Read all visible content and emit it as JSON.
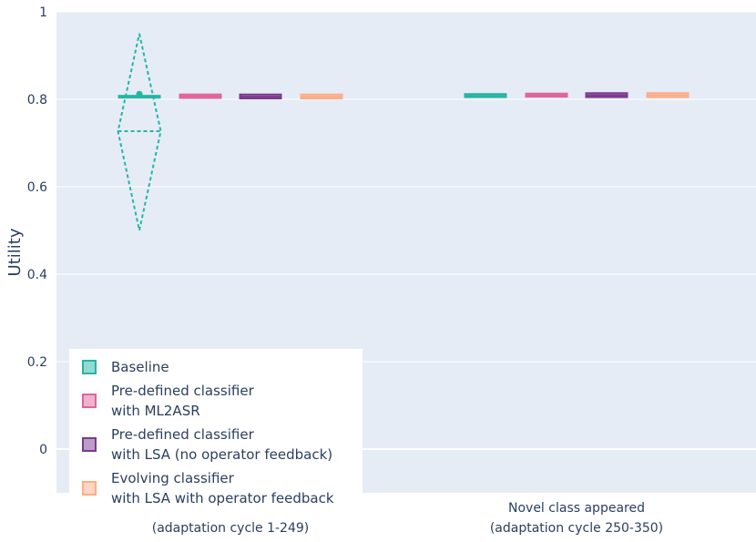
{
  "chart_data": {
    "type": "box",
    "ylabel": "Utility",
    "ylim": [
      -0.1,
      1.0
    ],
    "yticks": [
      0,
      0.2,
      0.4,
      0.6,
      0.8,
      1
    ],
    "ytick_labels": [
      "0",
      "0.2",
      "0.4",
      "0.6",
      "0.8",
      "1"
    ],
    "categories": [
      [
        "(adaptation cycle 1-249)"
      ],
      [
        "Novel class appeared",
        "(adaptation cycle 250-350)"
      ]
    ],
    "grid": true,
    "legend_position": "bottom-left",
    "series": [
      {
        "name_lines": [
          "Baseline"
        ],
        "color": "#26b5a5",
        "boxes": [
          {
            "q1": 0.804,
            "median": 0.806,
            "q3": 0.808,
            "mean": 0.812,
            "mean_line": 0.806,
            "diamond_top": 0.95,
            "diamond_bottom": 0.5,
            "diamond_mid": 0.727
          },
          {
            "q1": 0.805,
            "median": 0.808,
            "q3": 0.812
          }
        ]
      },
      {
        "name_lines": [
          "Pre-defined classifier",
          "with ML2ASR"
        ],
        "color": "#e0649c",
        "boxes": [
          {
            "q1": 0.803,
            "median": 0.807,
            "q3": 0.811
          },
          {
            "q1": 0.806,
            "median": 0.809,
            "q3": 0.813
          }
        ]
      },
      {
        "name_lines": [
          "Pre-defined classifier",
          "with LSA (no operator feedback)"
        ],
        "color": "#7b3a8e",
        "boxes": [
          {
            "q1": 0.802,
            "median": 0.806,
            "q3": 0.811
          },
          {
            "q1": 0.805,
            "median": 0.809,
            "q3": 0.814
          }
        ]
      },
      {
        "name_lines": [
          "Evolving classifier",
          "with LSA with operator feedback"
        ],
        "color": "#fcad88",
        "boxes": [
          {
            "q1": 0.802,
            "median": 0.806,
            "q3": 0.811
          },
          {
            "q1": 0.805,
            "median": 0.809,
            "q3": 0.814
          }
        ]
      }
    ]
  },
  "colors": {
    "plot_background": "#e5ecf6",
    "grid": "#ffffff",
    "text": "#2a3f5f"
  }
}
